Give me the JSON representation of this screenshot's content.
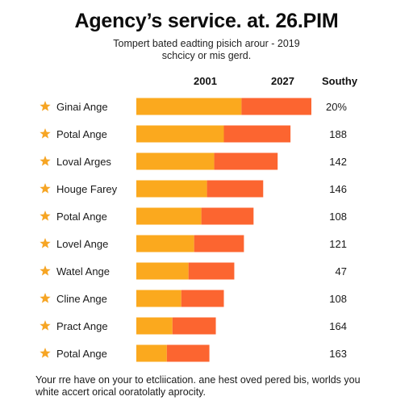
{
  "title": "Agency’s service. at. 26.PIM",
  "subtitle_lines": [
    "Tompert bated eadting pisich arour - 2019",
    "schcicy or mis gerd."
  ],
  "column_headers": {
    "left": "2001",
    "middle": "2027",
    "right": "Southy"
  },
  "footer_lines": [
    "Your rre have on your to etcliication. ane hest oved pered bis, worlds you",
    "white accert orical ooratolatly aprocity."
  ],
  "colors": {
    "primary": "#fba91e",
    "secondary": "#fc6530",
    "star": "#f6a524"
  },
  "chart_data": {
    "type": "bar",
    "orientation": "horizontal",
    "stacked": true,
    "categories": [
      "Ginai Ange",
      "Potal Ange",
      "Loval Arges",
      "Houge Farey",
      "Potal Ange",
      "Lovel Ange",
      "Watel Ange",
      "Cline Ange",
      "Pract Ange",
      "Potal Ange"
    ],
    "series": [
      {
        "name": "2001",
        "values": [
          131,
          109,
          97,
          88,
          81,
          72,
          65,
          56,
          45,
          38
        ]
      },
      {
        "name": "2027",
        "values": [
          87,
          83,
          79,
          70,
          65,
          62,
          57,
          53,
          54,
          53
        ]
      }
    ],
    "value_labels": [
      "20%",
      "188",
      "142",
      "146",
      "108",
      "121",
      "47",
      "108",
      "164",
      "163"
    ],
    "icon": "star-icon",
    "xlim": [
      0,
      220
    ],
    "grid": false,
    "legend": "none"
  }
}
